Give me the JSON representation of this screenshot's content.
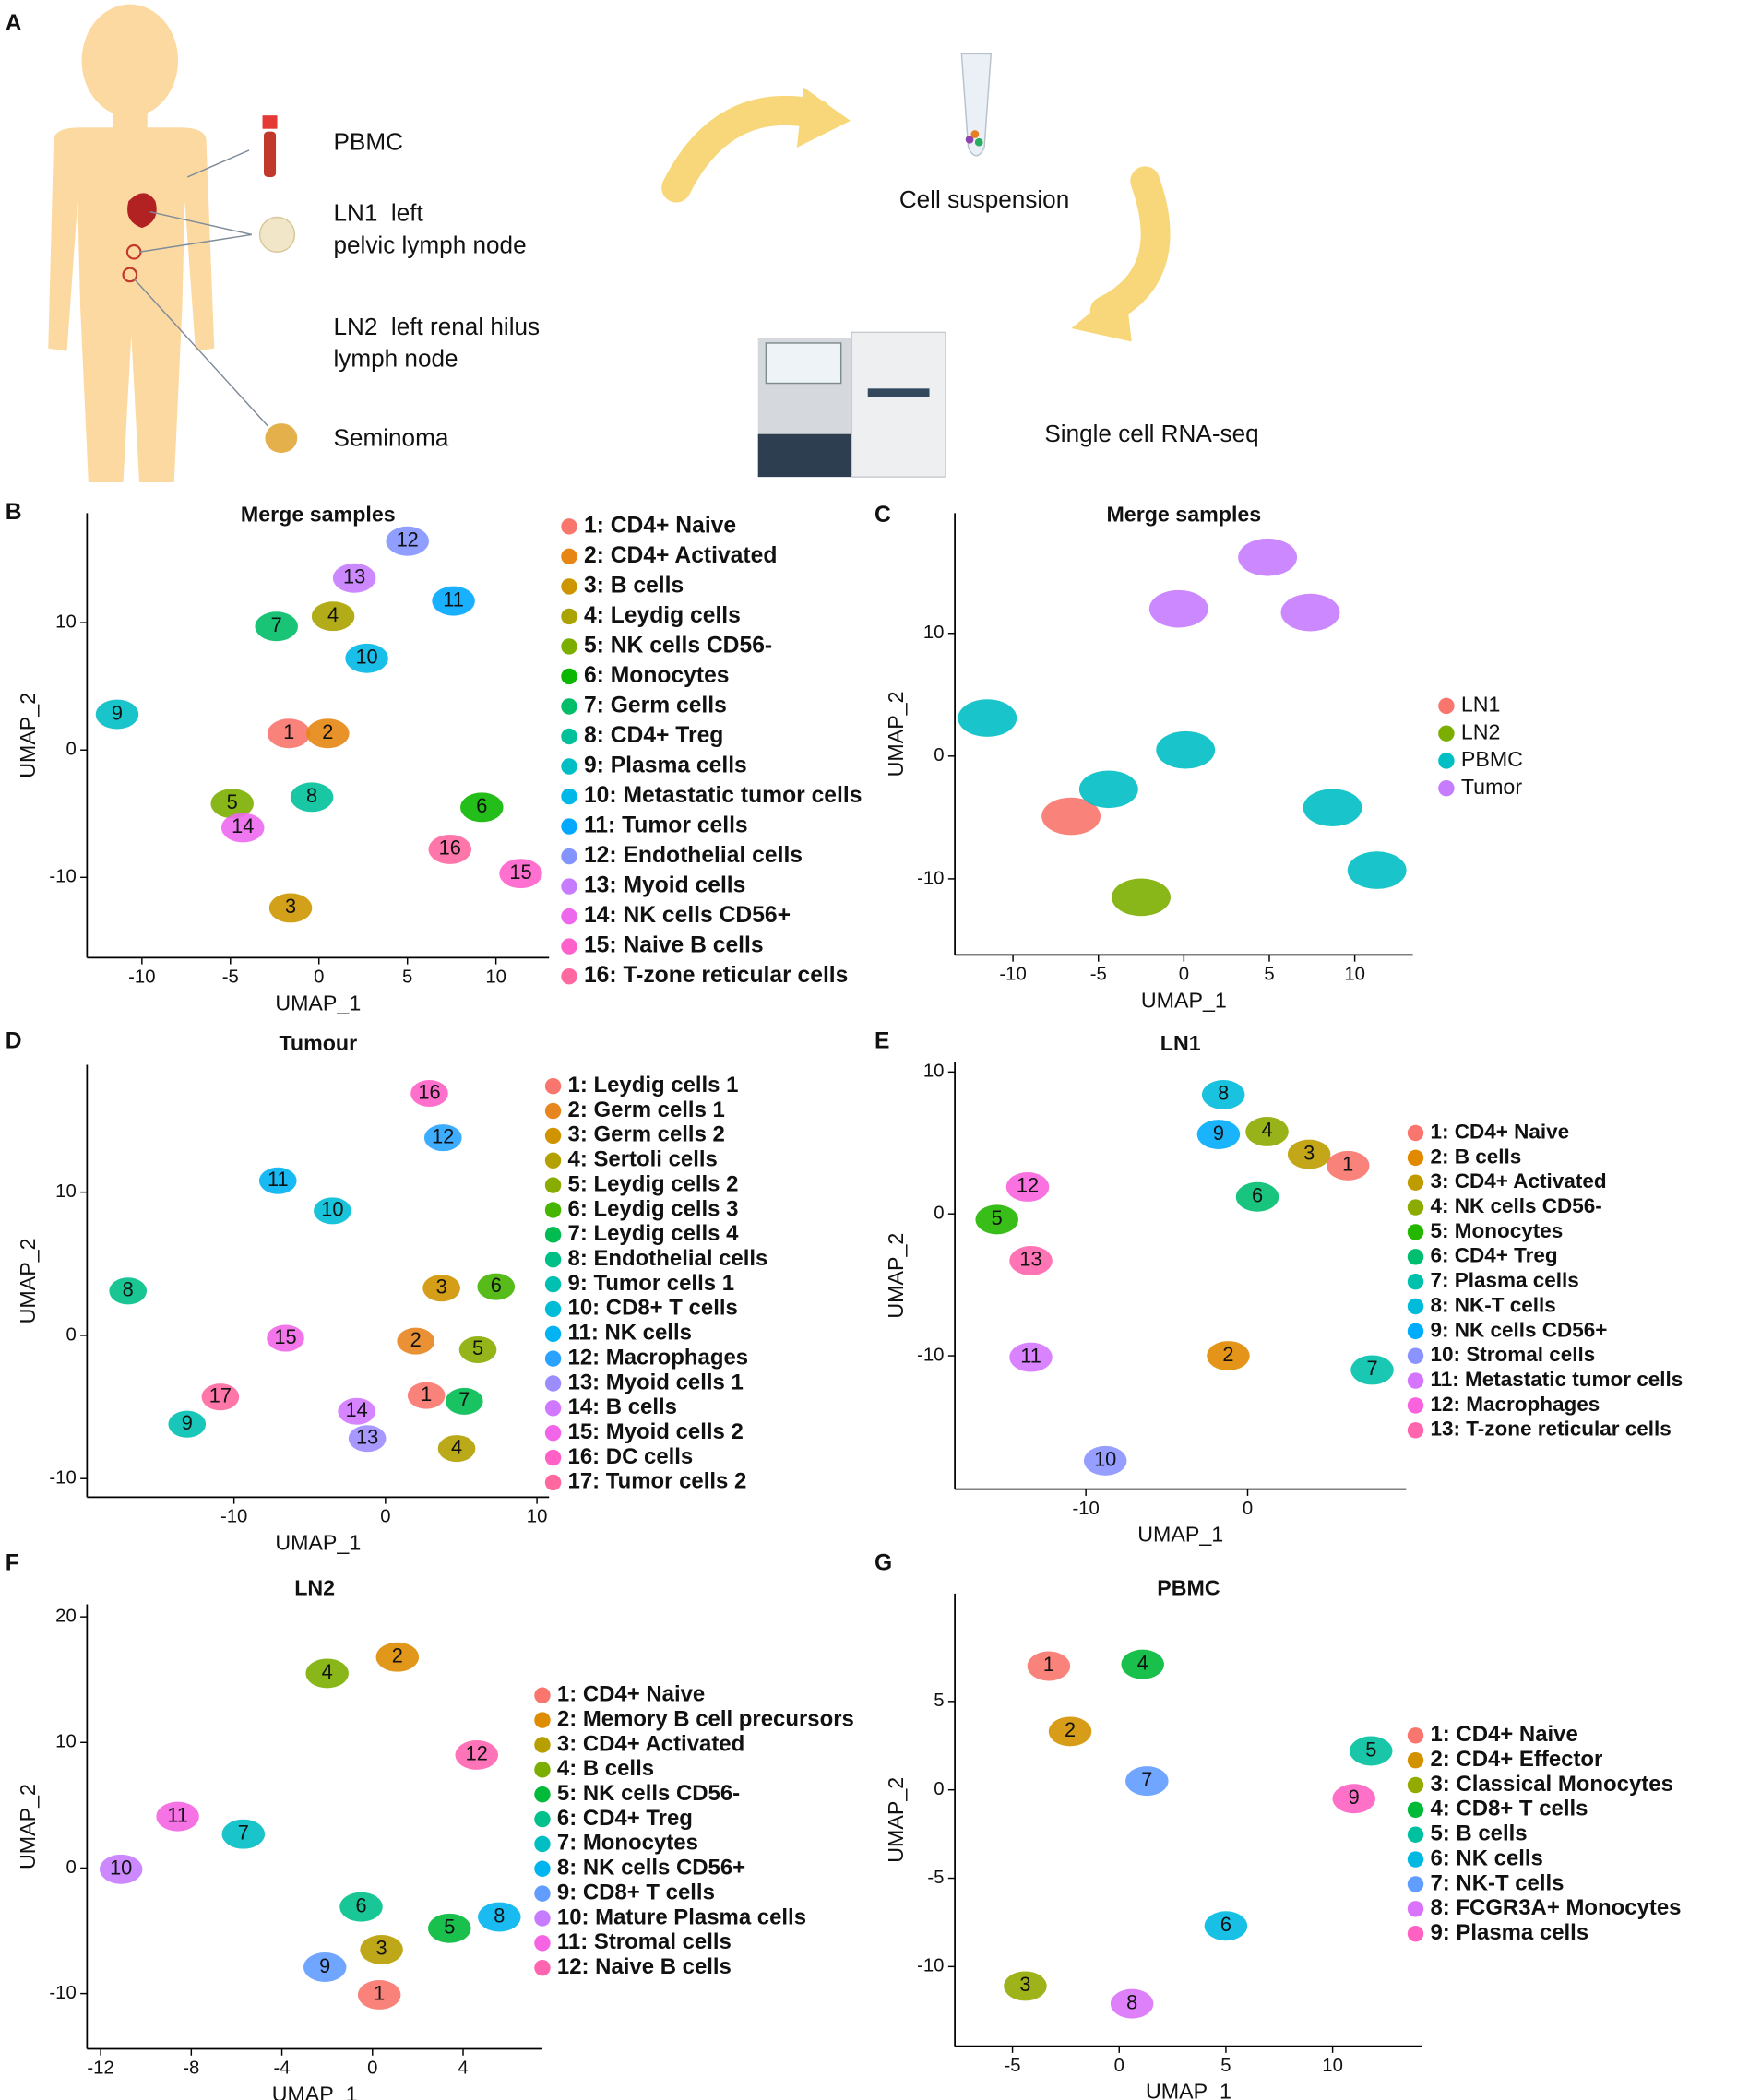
{
  "panel_a": {
    "label": "A",
    "items": [
      "PBMC",
      "LN1  left",
      "pelvic lymph node",
      "LN2  left renal hilus",
      "lymph node",
      "Seminoma"
    ],
    "steps": [
      "Cell suspension",
      "Single cell RNA-seq"
    ]
  },
  "chart_data": [
    {
      "panel": "B",
      "type": "scatter",
      "title": "Merge samples",
      "xlabel": "UMAP_1",
      "ylabel": "UMAP_2",
      "xlim": [
        -13.1,
        13
      ],
      "ylim": [
        -16.3,
        18.6
      ],
      "xticks": [
        -10,
        -5,
        0,
        5,
        10
      ],
      "yticks": [
        -10,
        0,
        10
      ],
      "series": [
        {
          "name": "1: CD4+ Naive",
          "label": "1",
          "color": "#F8766D",
          "x": -1.7,
          "y": 1.3
        },
        {
          "name": "2: CD4+ Activated",
          "label": "2",
          "color": "#E68613",
          "x": 0.5,
          "y": 1.3
        },
        {
          "name": "3: B cells",
          "label": "3",
          "color": "#CD9600",
          "x": -1.6,
          "y": -12.4
        },
        {
          "name": "4: Leydig cells",
          "label": "4",
          "color": "#ABA300",
          "x": 0.8,
          "y": 10.5
        },
        {
          "name": "5: NK cells CD56-",
          "label": "5",
          "color": "#7CAE00",
          "x": -4.9,
          "y": -4.2
        },
        {
          "name": "6: Monocytes",
          "label": "6",
          "color": "#0CB702",
          "x": 9.2,
          "y": -4.5
        },
        {
          "name": "7: Germ cells",
          "label": "7",
          "color": "#00BE67",
          "x": -2.4,
          "y": 9.7
        },
        {
          "name": "8: CD4+ Treg",
          "label": "8",
          "color": "#00C19A",
          "x": -0.4,
          "y": -3.7
        },
        {
          "name": "9: Plasma cells",
          "label": "9",
          "color": "#00BFC4",
          "x": -11.4,
          "y": 2.8
        },
        {
          "name": "10: Metastatic tumor cells",
          "label": "10",
          "color": "#00B8E7",
          "x": 2.7,
          "y": 7.2
        },
        {
          "name": "11: Tumor cells",
          "label": "11",
          "color": "#00A9FF",
          "x": 7.6,
          "y": 11.7
        },
        {
          "name": "12: Endothelial cells",
          "label": "12",
          "color": "#8494FF",
          "x": 5.0,
          "y": 16.4
        },
        {
          "name": "13: Myoid cells",
          "label": "13",
          "color": "#C77CFF",
          "x": 2.0,
          "y": 13.5
        },
        {
          "name": "14: NK cells CD56+",
          "label": "14",
          "color": "#ED68ED",
          "x": -4.3,
          "y": -6.1
        },
        {
          "name": "15: Naive B cells",
          "label": "15",
          "color": "#FF61CC",
          "x": 11.4,
          "y": -9.7
        },
        {
          "name": "16: T-zone reticular cells",
          "label": "16",
          "color": "#FF68A1",
          "x": 7.4,
          "y": -7.8
        }
      ]
    },
    {
      "panel": "C",
      "type": "scatter",
      "title": "Merge samples",
      "xlabel": "UMAP_1",
      "ylabel": "UMAP_2",
      "xlim": [
        -13.4,
        13.4
      ],
      "ylim": [
        -16.2,
        19.8
      ],
      "xticks": [
        -10,
        -5,
        0,
        5,
        10
      ],
      "yticks": [
        -10,
        0,
        10
      ],
      "series": [
        {
          "name": "LN1",
          "color": "#F8766D",
          "x": [
            -6.6
          ],
          "y": [
            -4.9
          ]
        },
        {
          "name": "LN2",
          "color": "#7CAE00",
          "x": [
            -2.5
          ],
          "y": [
            -11.5
          ]
        },
        {
          "name": "PBMC",
          "color": "#00BFC4",
          "x": [
            0.1,
            -4.4,
            8.7,
            -11.5,
            11.3
          ],
          "y": [
            0.5,
            -2.7,
            -4.2,
            3.1,
            -9.3
          ]
        },
        {
          "name": "Tumor",
          "color": "#C77CFF",
          "x": [
            -0.3,
            4.9,
            7.4
          ],
          "y": [
            12.0,
            16.2,
            11.7
          ]
        }
      ]
    },
    {
      "panel": "D",
      "type": "scatter",
      "title": "Tumour",
      "xlabel": "UMAP_1",
      "ylabel": "UMAP_2",
      "xlim": [
        -19.7,
        10.8
      ],
      "ylim": [
        -11.3,
        18.9
      ],
      "xticks": [
        -10,
        0,
        10
      ],
      "yticks": [
        -10,
        0,
        10
      ],
      "series": [
        {
          "name": "1: Leydig cells 1",
          "label": "1",
          "color": "#F8766D",
          "x": 2.7,
          "y": -4.2
        },
        {
          "name": "2: Germ cells 1",
          "label": "2",
          "color": "#E7851E",
          "x": 2.0,
          "y": -0.4
        },
        {
          "name": "3: Germ cells 2",
          "label": "3",
          "color": "#D09400",
          "x": 3.7,
          "y": 3.3
        },
        {
          "name": "4: Sertoli cells",
          "label": "4",
          "color": "#B2A100",
          "x": 4.7,
          "y": -7.9
        },
        {
          "name": "5: Leydig cells 2",
          "label": "5",
          "color": "#89AC00",
          "x": 6.1,
          "y": -1.0
        },
        {
          "name": "6: Leydig cells 3",
          "label": "6",
          "color": "#45B500",
          "x": 7.3,
          "y": 3.4
        },
        {
          "name": "7: Leydig cells 4",
          "label": "7",
          "color": "#00BC51",
          "x": 5.2,
          "y": -4.6
        },
        {
          "name": "8: Endothelial cells",
          "label": "8",
          "color": "#00C087",
          "x": -17.0,
          "y": 3.1
        },
        {
          "name": "9: Tumor cells 1",
          "label": "9",
          "color": "#00C0B2",
          "x": -13.1,
          "y": -6.2
        },
        {
          "name": "10: CD8+ T cells",
          "label": "10",
          "color": "#00BCD6",
          "x": -3.5,
          "y": 8.7
        },
        {
          "name": "11: NK cells",
          "label": "11",
          "color": "#00B3F2",
          "x": -7.1,
          "y": 10.8
        },
        {
          "name": "12: Macrophages",
          "label": "12",
          "color": "#29A3FF",
          "x": 3.8,
          "y": 13.8
        },
        {
          "name": "13: Myoid cells 1",
          "label": "13",
          "color": "#9C8DFF",
          "x": -1.2,
          "y": -7.2
        },
        {
          "name": "14: B cells",
          "label": "14",
          "color": "#D277FF",
          "x": -1.9,
          "y": -5.3
        },
        {
          "name": "15: Myoid cells 2",
          "label": "15",
          "color": "#F166E8",
          "x": -6.6,
          "y": -0.2
        },
        {
          "name": "16: DC cells",
          "label": "16",
          "color": "#FF61C7",
          "x": 2.9,
          "y": 16.9
        },
        {
          "name": "17: Tumor cells 2",
          "label": "17",
          "color": "#FF689E",
          "x": -10.9,
          "y": -4.3
        }
      ]
    },
    {
      "panel": "E",
      "type": "scatter",
      "title": "LN1",
      "xlabel": "UMAP_1",
      "ylabel": "UMAP_2",
      "xlim": [
        -18.1,
        9.8
      ],
      "ylim": [
        -19.4,
        10.7
      ],
      "xticks": [
        -10,
        0
      ],
      "yticks": [
        -10,
        0,
        10
      ],
      "series": [
        {
          "name": "1: CD4+ Naive",
          "label": "1",
          "color": "#F8766D",
          "x": 6.2,
          "y": 3.4
        },
        {
          "name": "2: B cells",
          "label": "2",
          "color": "#E18A00",
          "x": -1.2,
          "y": -10.0
        },
        {
          "name": "3: CD4+ Activated",
          "label": "3",
          "color": "#BE9C00",
          "x": 3.8,
          "y": 4.2
        },
        {
          "name": "4: NK cells CD56-",
          "label": "4",
          "color": "#8CAB00",
          "x": 1.2,
          "y": 5.8
        },
        {
          "name": "5: Monocytes",
          "label": "5",
          "color": "#24B700",
          "x": -15.5,
          "y": -0.4
        },
        {
          "name": "6: CD4+ Treg",
          "label": "6",
          "color": "#00BE70",
          "x": 0.6,
          "y": 1.2
        },
        {
          "name": "7: Plasma cells",
          "label": "7",
          "color": "#00C1AB",
          "x": 7.7,
          "y": -11.0
        },
        {
          "name": "8: NK-T cells",
          "label": "8",
          "color": "#00BBDA",
          "x": -1.5,
          "y": 8.4
        },
        {
          "name": "9: NK cells CD56+",
          "label": "9",
          "color": "#00ACFC",
          "x": -1.8,
          "y": 5.6
        },
        {
          "name": "10: Stromal cells",
          "label": "10",
          "color": "#8B93FF",
          "x": -8.8,
          "y": -17.4
        },
        {
          "name": "11: Metastatic tumor cells",
          "label": "11",
          "color": "#D575FE",
          "x": -13.4,
          "y": -10.1
        },
        {
          "name": "12: Macrophages",
          "label": "12",
          "color": "#F962DD",
          "x": -13.6,
          "y": 1.9
        },
        {
          "name": "13: T-zone reticular cells",
          "label": "13",
          "color": "#FF65AC",
          "x": -13.4,
          "y": -3.3
        }
      ]
    },
    {
      "panel": "F",
      "type": "scatter",
      "title": "LN2",
      "xlabel": "UMAP_1",
      "ylabel": "UMAP_2",
      "xlim": [
        -12.6,
        7.5
      ],
      "ylim": [
        -14.4,
        21.0
      ],
      "xticks": [
        -12,
        -8,
        -4,
        0,
        4
      ],
      "yticks": [
        -10,
        0,
        10,
        20
      ],
      "series": [
        {
          "name": "1: CD4+ Naive",
          "label": "1",
          "color": "#F8766D",
          "x": 0.3,
          "y": -10.1
        },
        {
          "name": "2: Memory B cell precursors",
          "label": "2",
          "color": "#DE8C00",
          "x": 1.1,
          "y": 16.8
        },
        {
          "name": "3: CD4+ Activated",
          "label": "3",
          "color": "#B79F00",
          "x": 0.4,
          "y": -6.5
        },
        {
          "name": "4: B cells",
          "label": "4",
          "color": "#7CAE00",
          "x": -2.0,
          "y": 15.5
        },
        {
          "name": "5: NK cells CD56-",
          "label": "5",
          "color": "#00BA38",
          "x": 3.4,
          "y": -4.8
        },
        {
          "name": "6: CD4+ Treg",
          "label": "6",
          "color": "#00C08B",
          "x": -0.5,
          "y": -3.1
        },
        {
          "name": "7: Monocytes",
          "label": "7",
          "color": "#00BFC4",
          "x": -5.7,
          "y": 2.7
        },
        {
          "name": "8: NK cells CD56+",
          "label": "8",
          "color": "#00B4F0",
          "x": 5.6,
          "y": -3.9
        },
        {
          "name": "9: CD8+ T cells",
          "label": "9",
          "color": "#619CFF",
          "x": -2.1,
          "y": -7.9
        },
        {
          "name": "10: Mature Plasma cells",
          "label": "10",
          "color": "#C77CFF",
          "x": -11.1,
          "y": -0.1
        },
        {
          "name": "11: Stromal cells",
          "label": "11",
          "color": "#F564E3",
          "x": -8.6,
          "y": 4.1
        },
        {
          "name": "12: Naive B cells",
          "label": "12",
          "color": "#FF64B0",
          "x": 4.6,
          "y": 9.0
        }
      ]
    },
    {
      "panel": "G",
      "type": "scatter",
      "title": "PBMC",
      "xlabel": "UMAP_1",
      "ylabel": "UMAP_2",
      "xlim": [
        -7.7,
        14.2
      ],
      "ylim": [
        -14.5,
        11.1
      ],
      "xticks": [
        -5,
        0,
        5,
        10
      ],
      "yticks": [
        -10,
        -5,
        0,
        5
      ],
      "series": [
        {
          "name": "1: CD4+ Naive",
          "label": "1",
          "color": "#F8766D",
          "x": -3.3,
          "y": 7.0
        },
        {
          "name": "2: CD4+ Effector",
          "label": "2",
          "color": "#D39200",
          "x": -2.3,
          "y": 3.3
        },
        {
          "name": "3: Classical Monocytes",
          "label": "3",
          "color": "#93AA00",
          "x": -4.4,
          "y": -11.1
        },
        {
          "name": "4: CD8+ T cells",
          "label": "4",
          "color": "#00BA38",
          "x": 1.1,
          "y": 7.1
        },
        {
          "name": "5: B cells",
          "label": "5",
          "color": "#00C19F",
          "x": 11.8,
          "y": 2.2
        },
        {
          "name": "6: NK cells",
          "label": "6",
          "color": "#00B9E3",
          "x": 5.0,
          "y": -7.7
        },
        {
          "name": "7: NK-T cells",
          "label": "7",
          "color": "#619CFF",
          "x": 1.3,
          "y": 0.5
        },
        {
          "name": "8: FCGR3A+ Monocytes",
          "label": "8",
          "color": "#DB72FB",
          "x": 0.6,
          "y": -12.1
        },
        {
          "name": "9: Plasma cells",
          "label": "9",
          "color": "#FF61C3",
          "x": 11.0,
          "y": -0.5
        }
      ]
    }
  ]
}
